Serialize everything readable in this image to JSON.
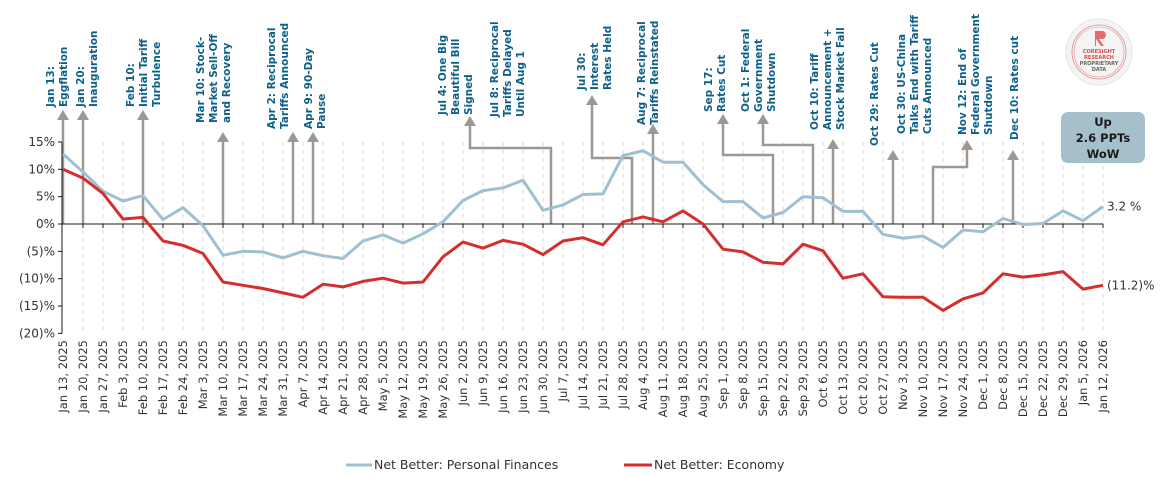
{
  "chart_data": {
    "type": "line",
    "title": "",
    "xlabel": "",
    "ylabel": "",
    "ylim": [
      -20,
      15
    ],
    "y_ticks": [
      15,
      10,
      5,
      0,
      -5,
      -10,
      -15,
      -20
    ],
    "y_tick_labels": [
      "15%",
      "10%",
      "5%",
      "0%",
      "(5)%",
      "(10)%",
      "(15)%",
      "(20)%"
    ],
    "grid": "vertical dashed",
    "legend_position": "bottom-center",
    "x": [
      "Jan 13, 2025",
      "Jan 20, 2025",
      "Jan 27, 2025",
      "Feb 3, 2025",
      "Feb 10, 2025",
      "Feb 17, 2025",
      "Feb 24, 2025",
      "Mar 3, 2025",
      "Mar 10, 2025",
      "Mar 17, 2025",
      "Mar 24, 2025",
      "Mar 31, 2025",
      "Apr 7, 2025",
      "Apr 14, 2025",
      "Apr 21, 2025",
      "Apr 28, 2025",
      "May 5, 2025",
      "May 12, 2025",
      "May 19, 2025",
      "May 26, 2025",
      "Jun 2, 2025",
      "Jun 9, 2025",
      "Jun 16, 2025",
      "Jun 23, 2025",
      "Jun 30, 2025",
      "Jul 7, 2025",
      "Jul 14, 2025",
      "Jul 21, 2025",
      "Jul 28, 2025",
      "Aug 4, 2025",
      "Aug 11, 2025",
      "Aug 18, 2025",
      "Aug 25, 2025",
      "Sep 1, 2025",
      "Sep 8, 2025",
      "Sep 15, 2025",
      "Sep 22, 2025",
      "Sep 29, 2025",
      "Oct 6, 2025",
      "Oct 13, 2025",
      "Oct 20, 2025",
      "Oct 27, 2025",
      "Nov 3, 2025",
      "Nov 10, 2025",
      "Nov 17, 2025",
      "Nov 24, 2025",
      "Dec 1, 2025",
      "Dec 8, 2025",
      "Dec 15, 2025",
      "Dec 22, 2025",
      "Dec 29, 2025",
      "Jan 5, 2026",
      "Jan 12, 2026"
    ],
    "series": [
      {
        "name": "Net Better: Personal Finances",
        "color": "#9fc0d0",
        "end_label": "3.2 %",
        "values": [
          12.8,
          9.5,
          6.0,
          4.2,
          5.2,
          0.8,
          3.0,
          -0.3,
          -5.7,
          -5.0,
          -5.1,
          -6.2,
          -5.0,
          -5.8,
          -6.3,
          -3.1,
          -2.0,
          -3.5,
          -1.8,
          0.4,
          4.3,
          6.1,
          6.6,
          8.0,
          2.5,
          3.5,
          5.4,
          5.5,
          12.5,
          13.4,
          11.3,
          11.3,
          7.2,
          4.1,
          4.1,
          1.1,
          2.1,
          5.0,
          4.8,
          2.3,
          2.3,
          -1.9,
          -2.6,
          -2.2,
          -4.3,
          -1.1,
          -1.4,
          1.0,
          -0.1,
          0.1,
          2.4,
          0.6,
          3.2
        ]
      },
      {
        "name": "Net Better: Economy",
        "color": "#d42e2e",
        "end_label": "(11.2)%",
        "values": [
          10.0,
          8.4,
          5.6,
          0.9,
          1.2,
          -3.1,
          -3.9,
          -5.4,
          -10.6,
          -11.2,
          -11.8,
          -12.6,
          -13.4,
          -11.0,
          -11.5,
          -10.5,
          -9.9,
          -10.8,
          -10.6,
          -6.0,
          -3.3,
          -4.4,
          -3.0,
          -3.7,
          -5.6,
          -3.1,
          -2.5,
          -3.8,
          0.4,
          1.3,
          0.4,
          2.4,
          0.0,
          -4.6,
          -5.1,
          -7.0,
          -7.3,
          -3.7,
          -4.9,
          -9.9,
          -9.1,
          -13.3,
          -13.4,
          -13.4,
          -15.8,
          -13.7,
          -12.6,
          -9.1,
          -9.7,
          -9.3,
          -8.7,
          -11.9,
          -11.2
        ]
      }
    ],
    "annotations": [
      {
        "lines": [
          "Jan 13:",
          "Eggflation"
        ],
        "x_index": 0
      },
      {
        "lines": [
          "Jan 20:",
          "Inauguration"
        ],
        "x_index": 1
      },
      {
        "lines": [
          "Feb 10:",
          "Initial Tariff",
          "Turbulence"
        ],
        "x_index": 4
      },
      {
        "lines": [
          "Mar 10: Stock-",
          "Market Sell-Off",
          "and Recovery"
        ],
        "x_index": 8
      },
      {
        "lines": [
          "Apr 2: Reciprocal",
          "Tariffs Announced"
        ],
        "x_index": 11.6
      },
      {
        "lines": [
          "Apr 9: 90-Day",
          "Pause"
        ],
        "x_index": 12.6
      },
      {
        "lines": [
          "Jul 4: One Big",
          "Beautiful Bill",
          "Signed"
        ],
        "x_index": 24.4
      },
      {
        "lines": [
          "Jul 8: Reciprocal",
          "Tariffs Delayed",
          "Until Aug 1"
        ],
        "x_index": 24.6
      },
      {
        "lines": [
          "Jul 30:",
          "Interest",
          "Rates Held"
        ],
        "x_index": 28.4
      },
      {
        "lines": [
          "Aug 7: Reciprocal",
          "Tariffs Reinstated"
        ],
        "x_index": 29.4
      },
      {
        "lines": [
          "Sep 17:",
          "Rates Cut"
        ],
        "x_index": 35.6
      },
      {
        "lines": [
          "Oct 1: Federal",
          "Government",
          "Shutdown"
        ],
        "x_index": 37.6
      },
      {
        "lines": [
          "Oct 10: Tariff",
          "Announcement +",
          "Stock Market Fall"
        ],
        "x_index": 38.6
      },
      {
        "lines": [
          "Oct 29: Rates Cut"
        ],
        "x_index": 41.4
      },
      {
        "lines": [
          "Oct 30: US-China",
          "Talks End with Tariff",
          "Cuts Announced"
        ],
        "x_index": 41.6
      },
      {
        "lines": [
          "Nov 12: End of",
          "Federal Government",
          "Shutdown"
        ],
        "x_index": 43.6
      },
      {
        "lines": [
          "Dec 10: Rates cut"
        ],
        "x_index": 47.6
      }
    ],
    "callout": {
      "lines": [
        "Up",
        "2.6 PPTs",
        "WoW"
      ],
      "color": "#a5bfcb"
    },
    "watermark": {
      "lines": [
        "CORESIGHT",
        "RESEARCH",
        "PROPRIETARY",
        "DATA"
      ],
      "brand_color": "#e05a5a"
    }
  },
  "colors": {
    "annotation_text": "#0f6089",
    "annotation_arrow": "#9e9792",
    "axis": "#1a1a1a"
  }
}
